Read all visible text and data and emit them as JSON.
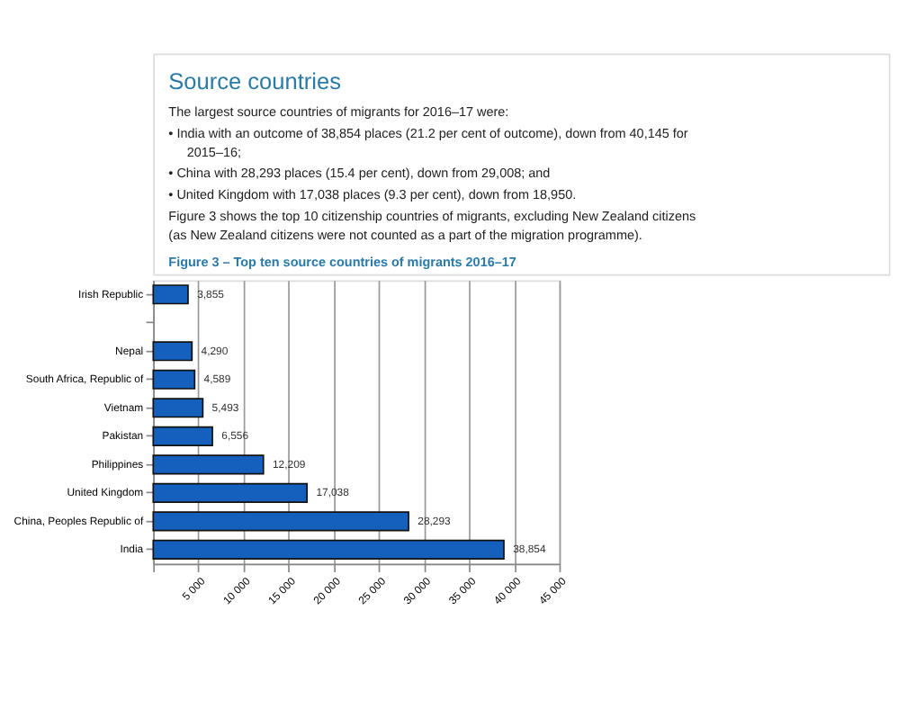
{
  "chart_data": {
    "type": "bar",
    "orientation": "horizontal",
    "title": "Source countries",
    "subtitle": "Figure 3 – Top ten source countries of migrants 2016–17",
    "annotations": [
      "The largest source countries of migrants for 2016–17 were:",
      "•  India with an outcome of 38,854 places (21.2 per cent of outcome), down from 40,145 for 2015–16;",
      "•  China with 28,293 places (15.4 per cent), down from 29,008; and",
      "•  United Kingdom with 17,038 places (9.3 per cent), down from 18,950.",
      "Figure 3 shows the top 10 citizenship countries of migrants, excluding New Zealand citizens (as New Zealand citizens were not counted as a part of the migration programme)."
    ],
    "categories": [
      "Irish Republic",
      null,
      "Nepal",
      "South Africa, Republic of",
      "Vietnam",
      "Pakistan",
      "Philippines",
      "United Kingdom",
      "China, Peoples Republic of",
      "India"
    ],
    "values": [
      3855,
      null,
      4290,
      4589,
      5493,
      6556,
      12209,
      17038,
      28293,
      38854
    ],
    "value_labels": [
      "3,855",
      null,
      "4,290",
      "4,589",
      "5,493",
      "6,556",
      "12,209",
      "17,038",
      "28,293",
      "38,854"
    ],
    "color": "#1560bd",
    "xlim": [
      0,
      45000
    ],
    "xticks": [
      {
        "value": 0,
        "label": null
      },
      {
        "value": 5000,
        "label": "5 000"
      },
      {
        "value": 10000,
        "label": "10 000"
      },
      {
        "value": 15000,
        "label": "15 000"
      },
      {
        "value": 20000,
        "label": "20 000"
      },
      {
        "value": 25000,
        "label": "25 000"
      },
      {
        "value": 30000,
        "label": "30 000"
      },
      {
        "value": 35000,
        "label": "35 000"
      },
      {
        "value": 40000,
        "label": "40 000"
      },
      {
        "value": 45000,
        "label": "45 000"
      }
    ],
    "grid": "x"
  }
}
